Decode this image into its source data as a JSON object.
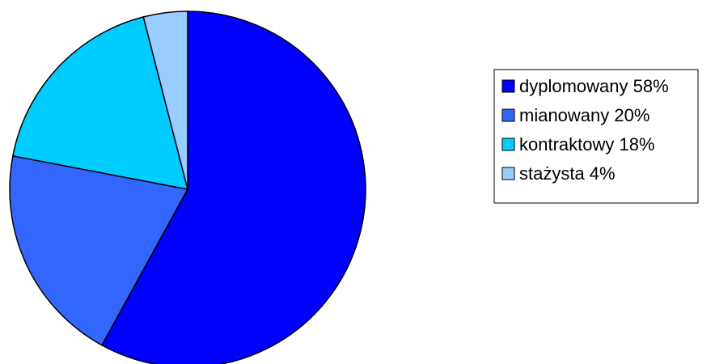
{
  "chart_data": {
    "type": "pie",
    "title": "",
    "legend_position": "right",
    "slices": [
      {
        "label": "dyplomowany 58%",
        "value": 58,
        "color": "#0000ff"
      },
      {
        "label": "mianowany 20%",
        "value": 20,
        "color": "#3366ff"
      },
      {
        "label": "kontraktowy 18%",
        "value": 18,
        "color": "#00ccff"
      },
      {
        "label": "stażysta 4%",
        "value": 4,
        "color": "#99ccff"
      }
    ]
  }
}
